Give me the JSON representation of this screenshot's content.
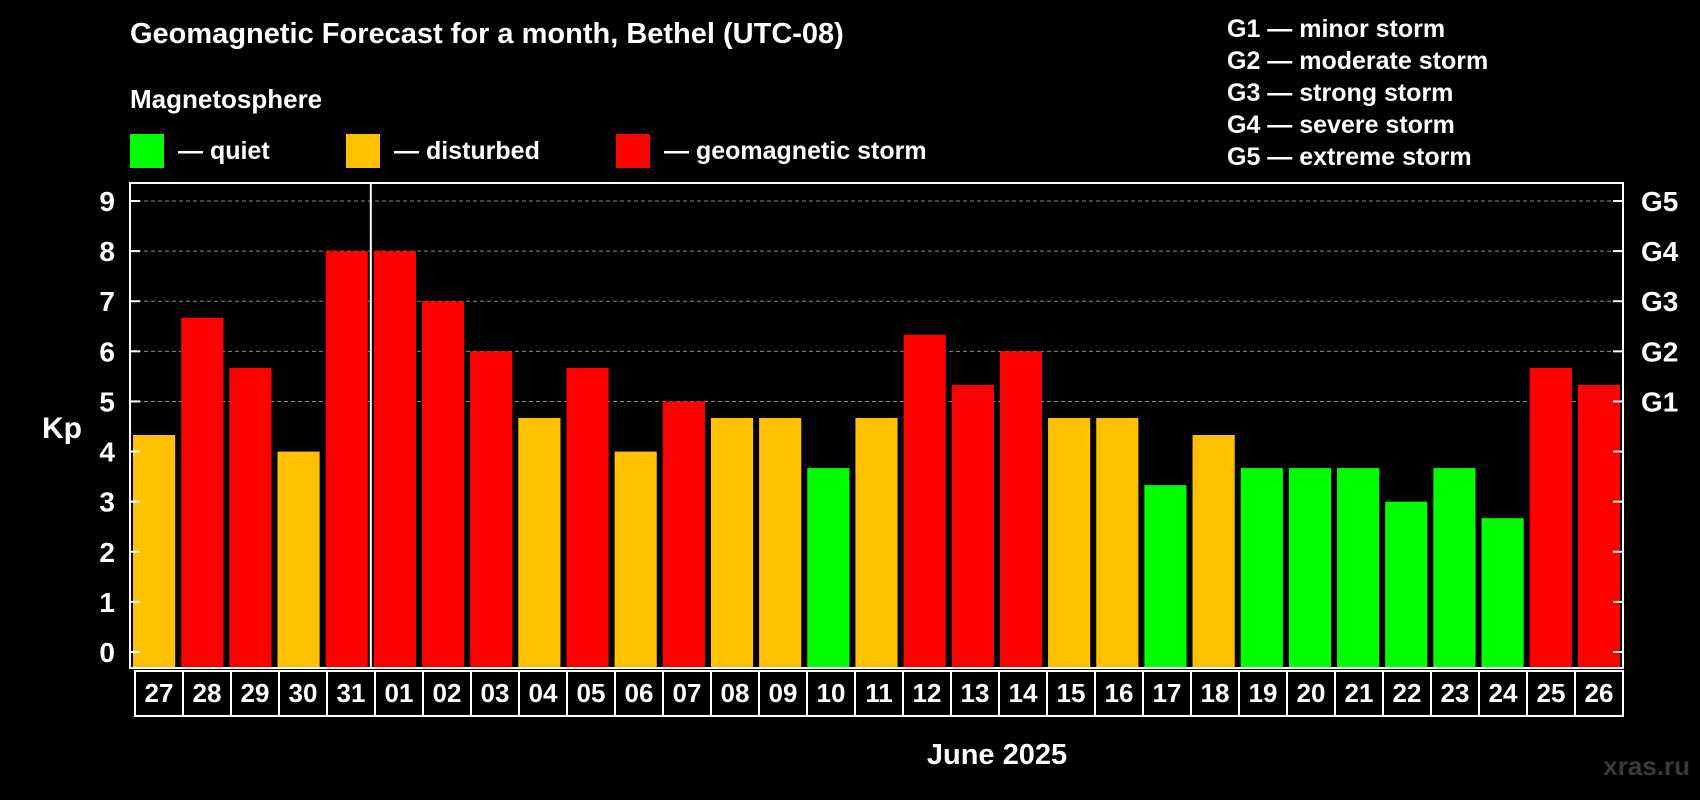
{
  "title": "Geomagnetic Forecast for a month, Bethel (UTC-08)",
  "legend": {
    "title": "Magnetosphere",
    "items": [
      {
        "label": "— quiet",
        "color": "#00ff00"
      },
      {
        "label": "— disturbed",
        "color": "#ffc000"
      },
      {
        "label": "— geomagnetic storm",
        "color": "#ff0000"
      }
    ]
  },
  "storm_levels": [
    "G1 — minor storm",
    "G2 — moderate storm",
    "G3 — strong storm",
    "G4 — severe storm",
    "G5 — extreme storm"
  ],
  "watermark": "xras.ru",
  "chart_data": {
    "type": "bar",
    "ylabel": "Kp",
    "xlabel": "June 2025",
    "ylim": [
      0,
      9
    ],
    "yticks": [
      0,
      1,
      2,
      3,
      4,
      5,
      6,
      7,
      8,
      9
    ],
    "grid": true,
    "right_axis_labels": [
      {
        "value": 5,
        "label": "G1"
      },
      {
        "value": 6,
        "label": "G2"
      },
      {
        "value": 7,
        "label": "G3"
      },
      {
        "value": 8,
        "label": "G4"
      },
      {
        "value": 9,
        "label": "G5"
      }
    ],
    "month_divider_after": "31",
    "colors": {
      "quiet": "#00ff00",
      "disturbed": "#ffc000",
      "storm": "#ff0000"
    },
    "categories": [
      "27",
      "28",
      "29",
      "30",
      "31",
      "01",
      "02",
      "03",
      "04",
      "05",
      "06",
      "07",
      "08",
      "09",
      "10",
      "11",
      "12",
      "13",
      "14",
      "15",
      "16",
      "17",
      "18",
      "19",
      "20",
      "21",
      "22",
      "23",
      "24",
      "25",
      "26"
    ],
    "values": [
      4.33,
      6.67,
      5.67,
      4.0,
      8.0,
      8.0,
      7.0,
      6.0,
      4.67,
      5.67,
      4.0,
      5.0,
      4.67,
      4.67,
      3.67,
      4.67,
      6.33,
      5.33,
      6.0,
      4.67,
      4.67,
      3.33,
      4.33,
      3.67,
      3.67,
      3.67,
      3.0,
      3.67,
      2.67,
      5.67,
      5.33
    ],
    "levels": [
      "disturbed",
      "storm",
      "storm",
      "disturbed",
      "storm",
      "storm",
      "storm",
      "storm",
      "disturbed",
      "storm",
      "disturbed",
      "storm",
      "disturbed",
      "disturbed",
      "quiet",
      "disturbed",
      "storm",
      "storm",
      "storm",
      "disturbed",
      "disturbed",
      "quiet",
      "disturbed",
      "quiet",
      "quiet",
      "quiet",
      "quiet",
      "quiet",
      "quiet",
      "storm",
      "storm"
    ]
  }
}
